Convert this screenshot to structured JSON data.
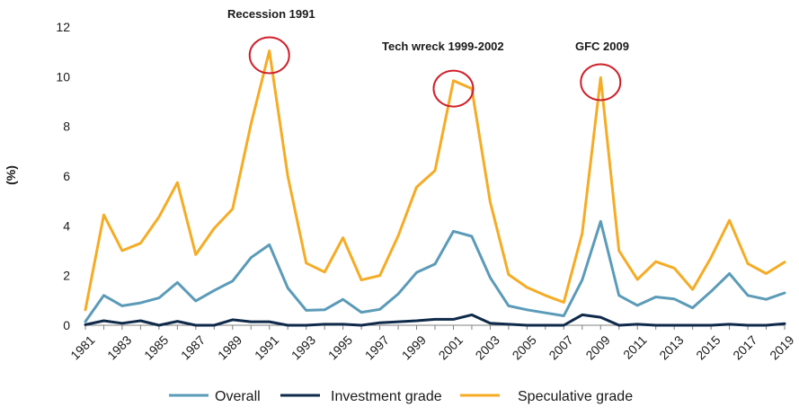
{
  "chart_data": {
    "type": "line",
    "x": [
      1981,
      1982,
      1983,
      1984,
      1985,
      1986,
      1987,
      1988,
      1989,
      1990,
      1991,
      1992,
      1993,
      1994,
      1995,
      1996,
      1997,
      1998,
      1999,
      2000,
      2001,
      2002,
      2003,
      2004,
      2005,
      2006,
      2007,
      2008,
      2009,
      2010,
      2011,
      2012,
      2013,
      2014,
      2015,
      2016,
      2017,
      2018,
      2019
    ],
    "x_tick_labels": [
      "1981",
      "1983",
      "1985",
      "1987",
      "1989",
      "1991",
      "1993",
      "1995",
      "1997",
      "1999",
      "2001",
      "2003",
      "2005",
      "2007",
      "2009",
      "2011",
      "2013",
      "2015",
      "2017",
      "2019"
    ],
    "ylabel": "(%)",
    "ylim": [
      0,
      12
    ],
    "y_ticks": [
      "0",
      "2",
      "4",
      "6",
      "8",
      "10",
      "12"
    ],
    "grid": false,
    "legend_position": "bottom",
    "series": [
      {
        "name": "Overall",
        "color": "#5b9bb8",
        "values": [
          0.15,
          1.2,
          0.78,
          0.9,
          1.1,
          1.72,
          0.98,
          1.4,
          1.78,
          2.72,
          3.24,
          1.5,
          0.6,
          0.62,
          1.04,
          0.52,
          0.64,
          1.26,
          2.12,
          2.46,
          3.78,
          3.58,
          1.92,
          0.78,
          0.62,
          0.5,
          0.38,
          1.82,
          4.18,
          1.2,
          0.8,
          1.14,
          1.06,
          0.7,
          1.36,
          2.08,
          1.2,
          1.04,
          1.3
        ]
      },
      {
        "name": "Investment grade",
        "color": "#0f2a4a",
        "values": [
          0.02,
          0.18,
          0.08,
          0.18,
          0.0,
          0.16,
          0.0,
          0.0,
          0.22,
          0.14,
          0.14,
          0.0,
          0.0,
          0.04,
          0.04,
          0.0,
          0.1,
          0.14,
          0.18,
          0.24,
          0.24,
          0.42,
          0.08,
          0.04,
          0.0,
          0.0,
          0.0,
          0.42,
          0.32,
          0.0,
          0.04,
          0.0,
          0.0,
          0.0,
          0.0,
          0.04,
          0.0,
          0.0,
          0.06
        ]
      },
      {
        "name": "Speculative grade",
        "color": "#f5ac25",
        "values": [
          0.62,
          4.44,
          3.0,
          3.3,
          4.36,
          5.74,
          2.84,
          3.9,
          4.68,
          8.1,
          11.04,
          6.0,
          2.5,
          2.14,
          3.52,
          1.82,
          2.0,
          3.6,
          5.56,
          6.22,
          9.84,
          9.52,
          4.96,
          2.04,
          1.52,
          1.2,
          0.92,
          3.7,
          9.96,
          3.0,
          1.84,
          2.56,
          2.3,
          1.44,
          2.72,
          4.22,
          2.48,
          2.08,
          2.54
        ]
      }
    ],
    "annotations": [
      {
        "text": "Recession 1991",
        "year": 1991,
        "value": 11.04
      },
      {
        "text": "Tech wreck 1999-2002",
        "year": 2001,
        "value": 9.7
      },
      {
        "text": "GFC 2009",
        "year": 2009,
        "value": 9.96
      }
    ],
    "annotation_marker_color": "#d0202a"
  }
}
